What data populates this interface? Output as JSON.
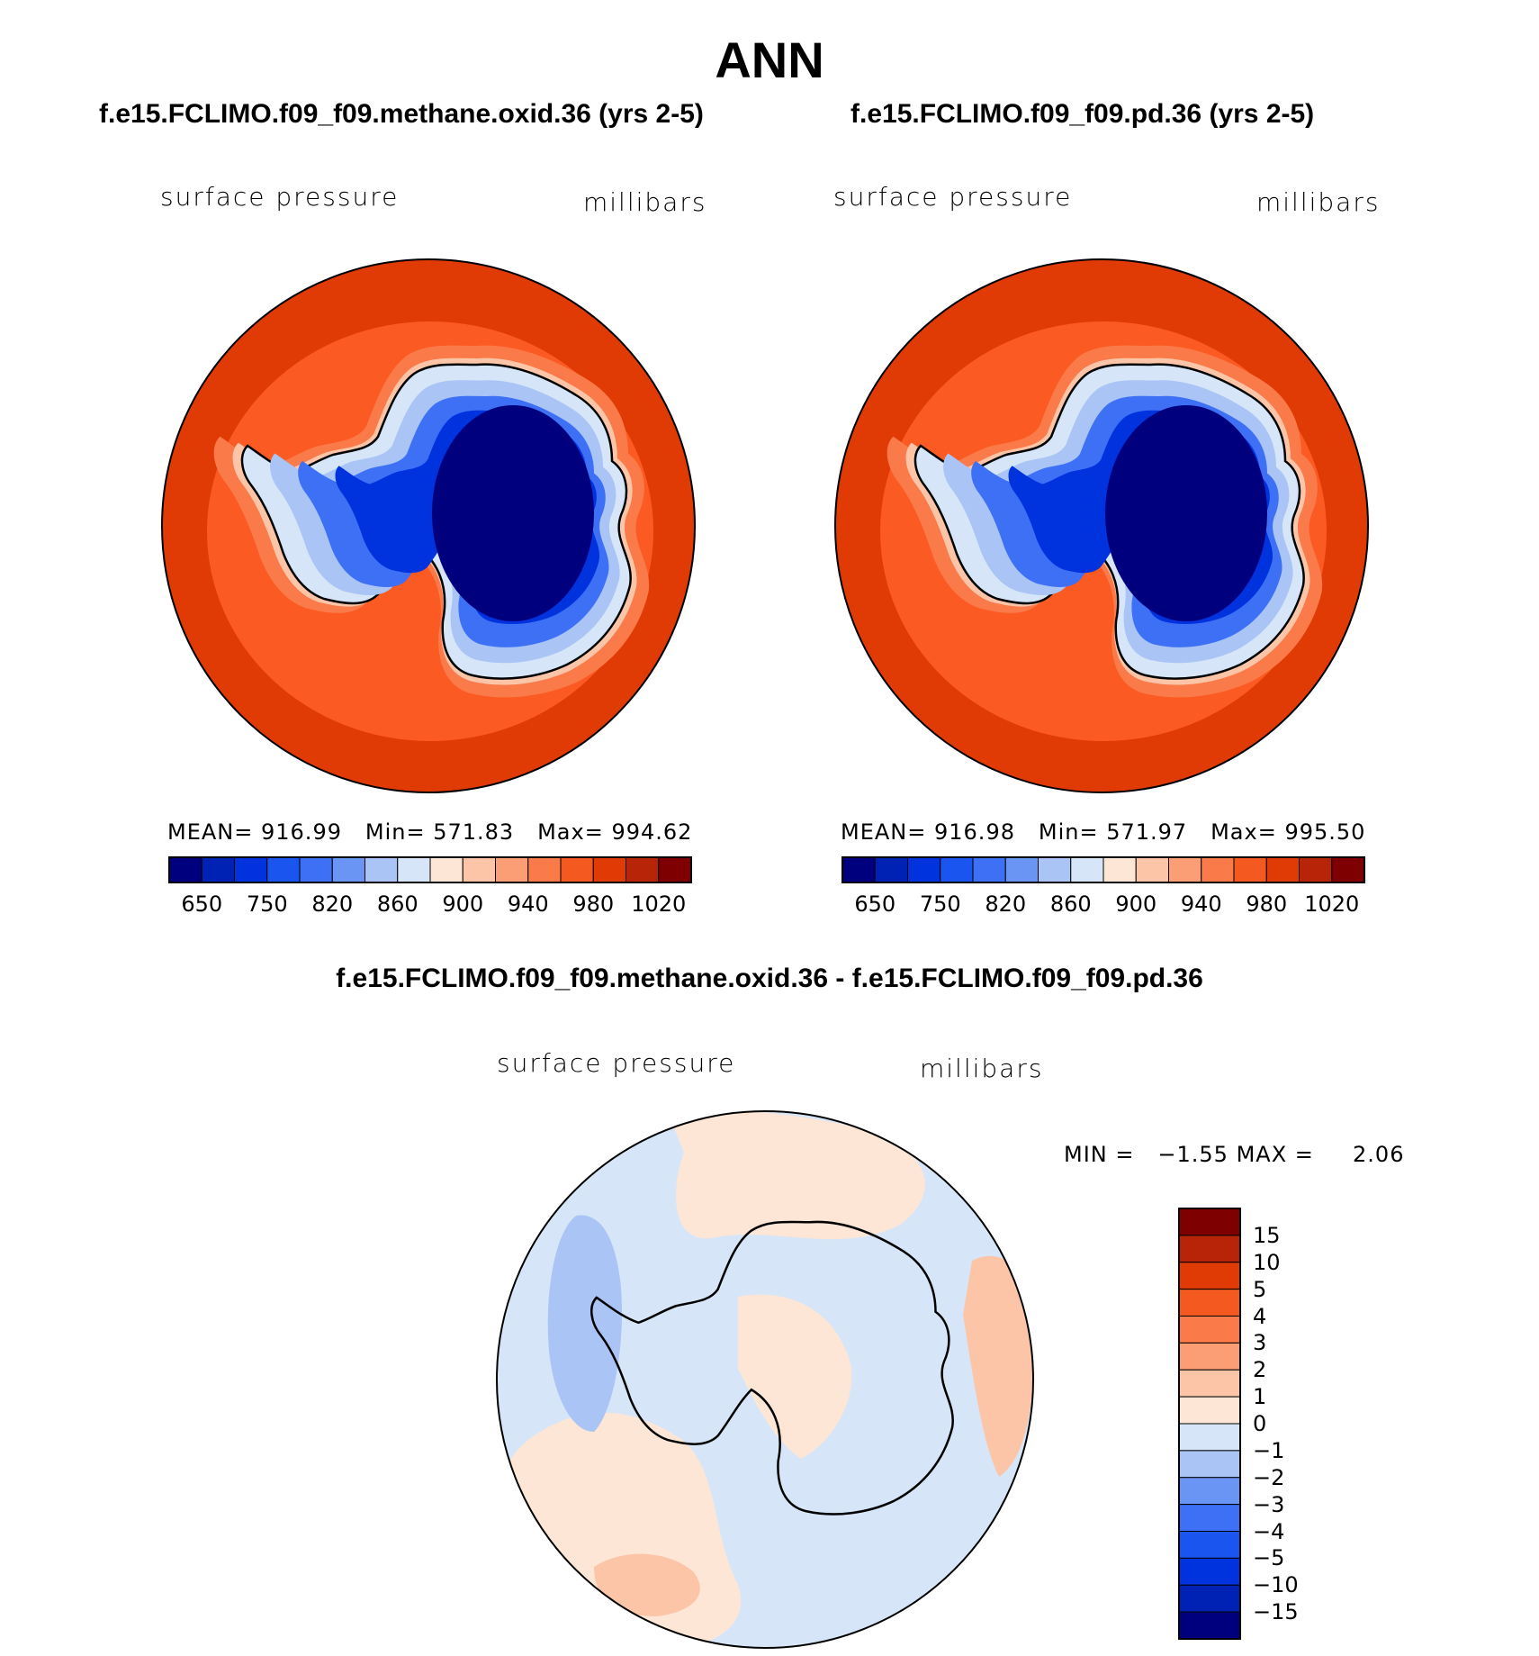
{
  "figure": {
    "title": "ANN"
  },
  "panels": [
    {
      "case": "f.e15.FCLIMO.f09_f09.methane.oxid.36 (yrs 2-5)",
      "variable": "surface pressure",
      "units": "millibars",
      "stats": {
        "mean_label": "MEAN=",
        "mean": "916.99",
        "min_label": "Min=",
        "min": "571.83",
        "max_label": "Max=",
        "max": "994.62"
      }
    },
    {
      "case": "f.e15.FCLIMO.f09_f09.pd.36 (yrs 2-5)",
      "variable": "surface pressure",
      "units": "millibars",
      "stats": {
        "mean_label": "MEAN=",
        "mean": "916.98",
        "min_label": "Min=",
        "min": "571.97",
        "max_label": "Max=",
        "max": "995.50"
      }
    }
  ],
  "difference": {
    "title": "f.e15.FCLIMO.f09_f09.methane.oxid.36 - f.e15.FCLIMO.f09_f09.pd.36",
    "variable": "surface pressure",
    "units": "millibars",
    "min_label": "MIN =",
    "min": "−1.55",
    "max_label": "MAX =",
    "max": "2.06"
  },
  "colorbar_abs": {
    "colors": [
      "#00007f",
      "#0022b4",
      "#0033dd",
      "#1a55f0",
      "#3d70f5",
      "#6a95f5",
      "#a9c4f5",
      "#d6e6f8",
      "#fde6d6",
      "#fcc5a8",
      "#fb9e76",
      "#fa7a4a",
      "#f45a20",
      "#e03a05",
      "#b82408",
      "#7f0000"
    ],
    "ticks": [
      "650",
      "750",
      "820",
      "860",
      "900",
      "940",
      "980",
      "1020"
    ]
  },
  "colorbar_diff": {
    "colors": [
      "#7f0000",
      "#b82408",
      "#e03a05",
      "#f45a20",
      "#fa7a4a",
      "#fb9e76",
      "#fcc5a8",
      "#fde6d6",
      "#d6e6f8",
      "#a9c4f5",
      "#6a95f5",
      "#3d70f5",
      "#1a55f0",
      "#0033dd",
      "#0022b4",
      "#00007f"
    ],
    "ticks": [
      "15",
      "10",
      "5",
      "4",
      "3",
      "2",
      "1",
      "0",
      "−1",
      "−2",
      "−3",
      "−4",
      "−5",
      "−10",
      "−15"
    ]
  },
  "map_colors": {
    "outer_ring": "#e03a05",
    "ocean_band": "#fb5a22",
    "coast_band": "#fb7a4a",
    "ice_edge": "#a9c4f5",
    "ice_mid": "#3d70f5",
    "ice_inner": "#0033dd",
    "ice_core": "#00007f",
    "diff_neg": "#d6e6f8",
    "diff_pos": "#fde6d6",
    "diff_pos2": "#fcc5a8",
    "diff_neg2": "#a9c4f5"
  }
}
